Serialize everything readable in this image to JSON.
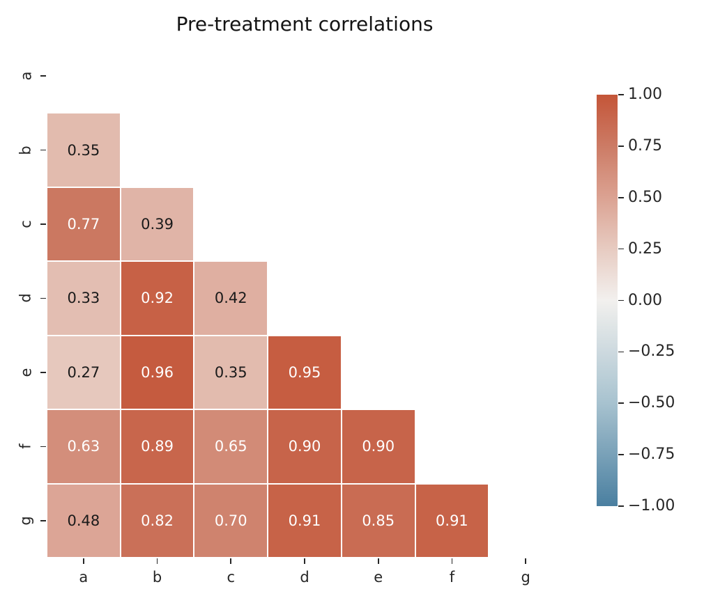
{
  "title": "Pre-treatment correlations",
  "chart_data": {
    "type": "heatmap",
    "title": "Pre-treatment correlations",
    "categories": [
      "a",
      "b",
      "c",
      "d",
      "e",
      "f",
      "g"
    ],
    "x_tick_labels": [
      "a",
      "b",
      "c",
      "d",
      "e",
      "f",
      "g"
    ],
    "y_tick_labels": [
      "a",
      "b",
      "c",
      "d",
      "e",
      "f",
      "g"
    ],
    "matrix": [
      [
        null,
        null,
        null,
        null,
        null,
        null,
        null
      ],
      [
        0.35,
        null,
        null,
        null,
        null,
        null,
        null
      ],
      [
        0.77,
        0.39,
        null,
        null,
        null,
        null,
        null
      ],
      [
        0.33,
        0.92,
        0.42,
        null,
        null,
        null,
        null
      ],
      [
        0.27,
        0.96,
        0.35,
        0.95,
        null,
        null,
        null
      ],
      [
        0.63,
        0.89,
        0.65,
        0.9,
        0.9,
        null,
        null
      ],
      [
        0.48,
        0.82,
        0.7,
        0.91,
        0.85,
        0.91,
        null
      ]
    ],
    "annotation_format": "two-decimals",
    "mask": "upper-triangle-and-diagonal",
    "grid": false,
    "colorbar": {
      "position": "right",
      "min": -1.0,
      "max": 1.0,
      "tick_labels": [
        "1.00",
        "0.75",
        "0.50",
        "0.25",
        "0.00",
        "−0.25",
        "−0.50",
        "−0.75",
        "−1.00"
      ]
    },
    "colors": {
      "max_positive": "#c45538",
      "mid_zero": "#f2f0ee",
      "min_negative": "#4a7fa0",
      "cell_divider": "#ffffff",
      "annotation_dark": "#1a1a1a",
      "annotation_light": "#ffffff",
      "axis_text": "#262626"
    }
  }
}
